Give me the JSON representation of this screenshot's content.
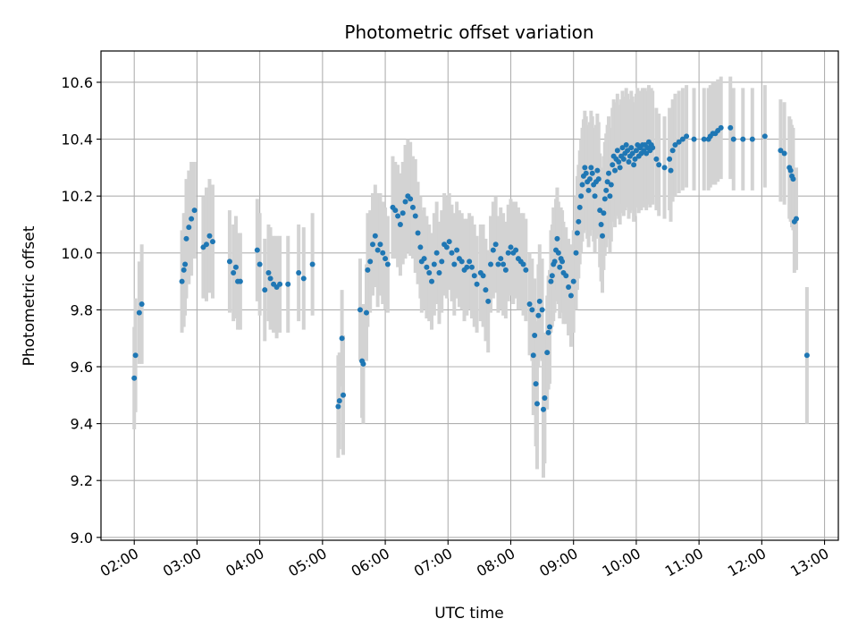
{
  "chart_data": {
    "type": "scatter",
    "title": "Photometric offset variation",
    "xlabel": "UTC time",
    "ylabel": "Photometric offset",
    "x_unit": "hours UTC",
    "xlim": [
      1.47,
      13.22
    ],
    "ylim": [
      8.99,
      10.71
    ],
    "x_ticks": [
      2,
      3,
      4,
      5,
      6,
      7,
      8,
      9,
      10,
      11,
      12,
      13
    ],
    "x_tick_labels": [
      "02:00",
      "03:00",
      "04:00",
      "05:00",
      "06:00",
      "07:00",
      "08:00",
      "09:00",
      "10:00",
      "11:00",
      "12:00",
      "13:00"
    ],
    "y_ticks": [
      9.0,
      9.2,
      9.4,
      9.6,
      9.8,
      10.0,
      10.2,
      10.4,
      10.6
    ],
    "y_tick_labels": [
      "9.0",
      "9.2",
      "9.4",
      "9.6",
      "9.8",
      "10.0",
      "10.2",
      "10.4",
      "10.6"
    ],
    "grid": true,
    "marker_color": "#1f77b4",
    "errorbar_color": "#d3d3d3",
    "series": [
      {
        "points": [
          [
            2.0,
            9.56,
            0.18
          ],
          [
            2.02,
            9.64,
            0.2
          ],
          [
            2.08,
            9.79,
            0.18
          ],
          [
            2.12,
            9.82,
            0.21
          ],
          [
            2.76,
            9.9,
            0.18
          ],
          [
            2.79,
            9.94,
            0.2
          ],
          [
            2.81,
            9.96,
            0.18
          ],
          [
            2.83,
            10.05,
            0.21
          ],
          [
            2.87,
            10.09,
            0.2
          ],
          [
            2.91,
            10.12,
            0.2
          ],
          [
            2.96,
            10.15,
            0.17
          ],
          [
            3.1,
            10.02,
            0.18
          ],
          [
            3.15,
            10.03,
            0.2
          ],
          [
            3.2,
            10.06,
            0.2
          ],
          [
            3.25,
            10.04,
            0.2
          ],
          [
            3.52,
            9.97,
            0.18
          ],
          [
            3.58,
            9.93,
            0.17
          ],
          [
            3.62,
            9.95,
            0.18
          ],
          [
            3.65,
            9.9,
            0.17
          ],
          [
            3.69,
            9.9,
            0.17
          ],
          [
            3.96,
            10.01,
            0.18
          ],
          [
            4.0,
            9.96,
            0.18
          ],
          [
            4.08,
            9.87,
            0.18
          ],
          [
            4.14,
            9.93,
            0.17
          ],
          [
            4.17,
            9.91,
            0.18
          ],
          [
            4.22,
            9.89,
            0.17
          ],
          [
            4.27,
            9.88,
            0.18
          ],
          [
            4.32,
            9.89,
            0.17
          ],
          [
            4.45,
            9.89,
            0.17
          ],
          [
            4.62,
            9.93,
            0.17
          ],
          [
            4.7,
            9.91,
            0.18
          ],
          [
            4.84,
            9.96,
            0.18
          ],
          [
            5.25,
            9.46,
            0.18
          ],
          [
            5.27,
            9.48,
            0.17
          ],
          [
            5.31,
            9.7,
            0.17
          ],
          [
            5.33,
            9.5,
            0.21
          ],
          [
            5.6,
            9.8,
            0.18
          ],
          [
            5.63,
            9.62,
            0.2
          ],
          [
            5.65,
            9.61,
            0.21
          ],
          [
            5.7,
            9.79,
            0.17
          ],
          [
            5.72,
            9.94,
            0.2
          ],
          [
            5.76,
            9.97,
            0.18
          ],
          [
            5.8,
            10.03,
            0.18
          ],
          [
            5.84,
            10.06,
            0.18
          ],
          [
            5.88,
            10.01,
            0.2
          ],
          [
            5.92,
            10.03,
            0.18
          ],
          [
            5.96,
            10.0,
            0.18
          ],
          [
            6.0,
            9.98,
            0.18
          ],
          [
            6.04,
            9.96,
            0.17
          ],
          [
            6.12,
            10.16,
            0.18
          ],
          [
            6.16,
            10.15,
            0.17
          ],
          [
            6.2,
            10.13,
            0.18
          ],
          [
            6.24,
            10.1,
            0.18
          ],
          [
            6.28,
            10.14,
            0.18
          ],
          [
            6.32,
            10.18,
            0.2
          ],
          [
            6.36,
            10.2,
            0.2
          ],
          [
            6.4,
            10.19,
            0.2
          ],
          [
            6.44,
            10.16,
            0.18
          ],
          [
            6.48,
            10.13,
            0.2
          ],
          [
            6.52,
            10.07,
            0.18
          ],
          [
            6.56,
            10.02,
            0.18
          ],
          [
            6.58,
            9.97,
            0.18
          ],
          [
            6.62,
            9.98,
            0.18
          ],
          [
            6.66,
            9.95,
            0.18
          ],
          [
            6.7,
            9.93,
            0.17
          ],
          [
            6.74,
            9.9,
            0.17
          ],
          [
            6.78,
            9.96,
            0.18
          ],
          [
            6.82,
            10.0,
            0.18
          ],
          [
            6.86,
            9.93,
            0.18
          ],
          [
            6.9,
            9.97,
            0.18
          ],
          [
            6.94,
            10.03,
            0.18
          ],
          [
            6.98,
            10.02,
            0.18
          ],
          [
            7.02,
            10.04,
            0.17
          ],
          [
            7.06,
            10.0,
            0.17
          ],
          [
            7.1,
            9.96,
            0.18
          ],
          [
            7.14,
            10.01,
            0.17
          ],
          [
            7.18,
            9.98,
            0.17
          ],
          [
            7.22,
            9.97,
            0.17
          ],
          [
            7.26,
            9.94,
            0.18
          ],
          [
            7.3,
            9.95,
            0.17
          ],
          [
            7.34,
            9.97,
            0.17
          ],
          [
            7.38,
            9.95,
            0.18
          ],
          [
            7.42,
            9.92,
            0.18
          ],
          [
            7.46,
            9.89,
            0.17
          ],
          [
            7.52,
            9.93,
            0.17
          ],
          [
            7.56,
            9.92,
            0.18
          ],
          [
            7.6,
            9.87,
            0.18
          ],
          [
            7.64,
            9.83,
            0.18
          ],
          [
            7.68,
            9.96,
            0.17
          ],
          [
            7.72,
            10.01,
            0.17
          ],
          [
            7.76,
            10.03,
            0.17
          ],
          [
            7.8,
            9.96,
            0.17
          ],
          [
            7.84,
            9.98,
            0.18
          ],
          [
            7.88,
            9.96,
            0.18
          ],
          [
            7.92,
            9.94,
            0.17
          ],
          [
            7.96,
            10.0,
            0.17
          ],
          [
            8.0,
            10.02,
            0.17
          ],
          [
            8.04,
            10.0,
            0.18
          ],
          [
            8.08,
            10.01,
            0.17
          ],
          [
            8.12,
            9.98,
            0.18
          ],
          [
            8.16,
            9.97,
            0.17
          ],
          [
            8.2,
            9.96,
            0.18
          ],
          [
            8.24,
            9.94,
            0.18
          ],
          [
            8.3,
            9.82,
            0.18
          ],
          [
            8.34,
            9.8,
            0.18
          ],
          [
            8.36,
            9.64,
            0.21
          ],
          [
            8.38,
            9.71,
            0.2
          ],
          [
            8.4,
            9.54,
            0.22
          ],
          [
            8.42,
            9.47,
            0.23
          ],
          [
            8.44,
            9.78,
            0.18
          ],
          [
            8.46,
            9.83,
            0.2
          ],
          [
            8.5,
            9.8,
            0.18
          ],
          [
            8.52,
            9.45,
            0.24
          ],
          [
            8.54,
            9.49,
            0.23
          ],
          [
            8.58,
            9.65,
            0.2
          ],
          [
            8.6,
            9.72,
            0.2
          ],
          [
            8.62,
            9.74,
            0.2
          ],
          [
            8.64,
            9.9,
            0.18
          ],
          [
            8.66,
            9.92,
            0.18
          ],
          [
            8.68,
            9.96,
            0.2
          ],
          [
            8.7,
            9.97,
            0.18
          ],
          [
            8.72,
            10.01,
            0.18
          ],
          [
            8.74,
            10.05,
            0.18
          ],
          [
            8.76,
            10.0,
            0.18
          ],
          [
            8.78,
            9.95,
            0.18
          ],
          [
            8.8,
            9.98,
            0.18
          ],
          [
            8.82,
            9.97,
            0.18
          ],
          [
            8.84,
            9.93,
            0.18
          ],
          [
            8.88,
            9.92,
            0.17
          ],
          [
            8.92,
            9.88,
            0.17
          ],
          [
            8.96,
            9.85,
            0.18
          ],
          [
            9.0,
            9.9,
            0.18
          ],
          [
            9.04,
            10.0,
            0.2
          ],
          [
            9.06,
            10.07,
            0.2
          ],
          [
            9.08,
            10.11,
            0.2
          ],
          [
            9.1,
            10.16,
            0.2
          ],
          [
            9.12,
            10.2,
            0.2
          ],
          [
            9.14,
            10.24,
            0.2
          ],
          [
            9.16,
            10.27,
            0.2
          ],
          [
            9.18,
            10.3,
            0.2
          ],
          [
            9.2,
            10.28,
            0.2
          ],
          [
            9.22,
            10.25,
            0.2
          ],
          [
            9.24,
            10.22,
            0.2
          ],
          [
            9.26,
            10.26,
            0.2
          ],
          [
            9.28,
            10.3,
            0.2
          ],
          [
            9.3,
            10.28,
            0.2
          ],
          [
            9.32,
            10.24,
            0.2
          ],
          [
            9.34,
            10.2,
            0.2
          ],
          [
            9.36,
            10.25,
            0.2
          ],
          [
            9.38,
            10.29,
            0.2
          ],
          [
            9.4,
            10.26,
            0.2
          ],
          [
            9.42,
            10.15,
            0.2
          ],
          [
            9.44,
            10.1,
            0.2
          ],
          [
            9.46,
            10.06,
            0.2
          ],
          [
            9.48,
            10.14,
            0.2
          ],
          [
            9.5,
            10.19,
            0.2
          ],
          [
            9.52,
            10.22,
            0.2
          ],
          [
            9.54,
            10.25,
            0.2
          ],
          [
            9.56,
            10.28,
            0.2
          ],
          [
            9.58,
            10.2,
            0.2
          ],
          [
            9.6,
            10.24,
            0.2
          ],
          [
            9.62,
            10.31,
            0.2
          ],
          [
            9.64,
            10.34,
            0.2
          ],
          [
            9.66,
            10.29,
            0.2
          ],
          [
            9.68,
            10.33,
            0.2
          ],
          [
            9.7,
            10.36,
            0.2
          ],
          [
            9.72,
            10.32,
            0.2
          ],
          [
            9.74,
            10.3,
            0.2
          ],
          [
            9.76,
            10.34,
            0.2
          ],
          [
            9.78,
            10.37,
            0.2
          ],
          [
            9.8,
            10.33,
            0.2
          ],
          [
            9.82,
            10.35,
            0.2
          ],
          [
            9.84,
            10.38,
            0.2
          ],
          [
            9.86,
            10.36,
            0.2
          ],
          [
            9.88,
            10.32,
            0.2
          ],
          [
            9.9,
            10.34,
            0.2
          ],
          [
            9.92,
            10.37,
            0.2
          ],
          [
            9.94,
            10.35,
            0.2
          ],
          [
            9.96,
            10.31,
            0.2
          ],
          [
            9.98,
            10.33,
            0.2
          ],
          [
            10.0,
            10.36,
            0.2
          ],
          [
            10.02,
            10.38,
            0.2
          ],
          [
            10.04,
            10.34,
            0.2
          ],
          [
            10.06,
            10.37,
            0.2
          ],
          [
            10.08,
            10.35,
            0.2
          ],
          [
            10.1,
            10.38,
            0.2
          ],
          [
            10.12,
            10.36,
            0.2
          ],
          [
            10.14,
            10.38,
            0.2
          ],
          [
            10.16,
            10.35,
            0.2
          ],
          [
            10.18,
            10.37,
            0.2
          ],
          [
            10.2,
            10.39,
            0.2
          ],
          [
            10.22,
            10.36,
            0.2
          ],
          [
            10.24,
            10.38,
            0.2
          ],
          [
            10.26,
            10.37,
            0.2
          ],
          [
            10.32,
            10.33,
            0.18
          ],
          [
            10.36,
            10.31,
            0.18
          ],
          [
            10.45,
            10.3,
            0.18
          ],
          [
            10.53,
            10.33,
            0.18
          ],
          [
            10.55,
            10.29,
            0.18
          ],
          [
            10.58,
            10.36,
            0.18
          ],
          [
            10.62,
            10.38,
            0.18
          ],
          [
            10.68,
            10.39,
            0.18
          ],
          [
            10.74,
            10.4,
            0.18
          ],
          [
            10.8,
            10.41,
            0.18
          ],
          [
            10.92,
            10.4,
            0.18
          ],
          [
            11.08,
            10.4,
            0.18
          ],
          [
            11.15,
            10.4,
            0.18
          ],
          [
            11.18,
            10.41,
            0.18
          ],
          [
            11.22,
            10.42,
            0.18
          ],
          [
            11.26,
            10.42,
            0.18
          ],
          [
            11.3,
            10.43,
            0.18
          ],
          [
            11.35,
            10.44,
            0.18
          ],
          [
            11.5,
            10.44,
            0.18
          ],
          [
            11.55,
            10.4,
            0.18
          ],
          [
            11.7,
            10.4,
            0.18
          ],
          [
            11.85,
            10.4,
            0.18
          ],
          [
            12.05,
            10.41,
            0.18
          ],
          [
            12.3,
            10.36,
            0.18
          ],
          [
            12.36,
            10.35,
            0.18
          ],
          [
            12.44,
            10.3,
            0.18
          ],
          [
            12.46,
            10.29,
            0.18
          ],
          [
            12.48,
            10.27,
            0.18
          ],
          [
            12.5,
            10.26,
            0.18
          ],
          [
            12.52,
            10.11,
            0.18
          ],
          [
            12.55,
            10.12,
            0.18
          ],
          [
            12.72,
            9.64,
            0.24
          ]
        ]
      }
    ]
  }
}
